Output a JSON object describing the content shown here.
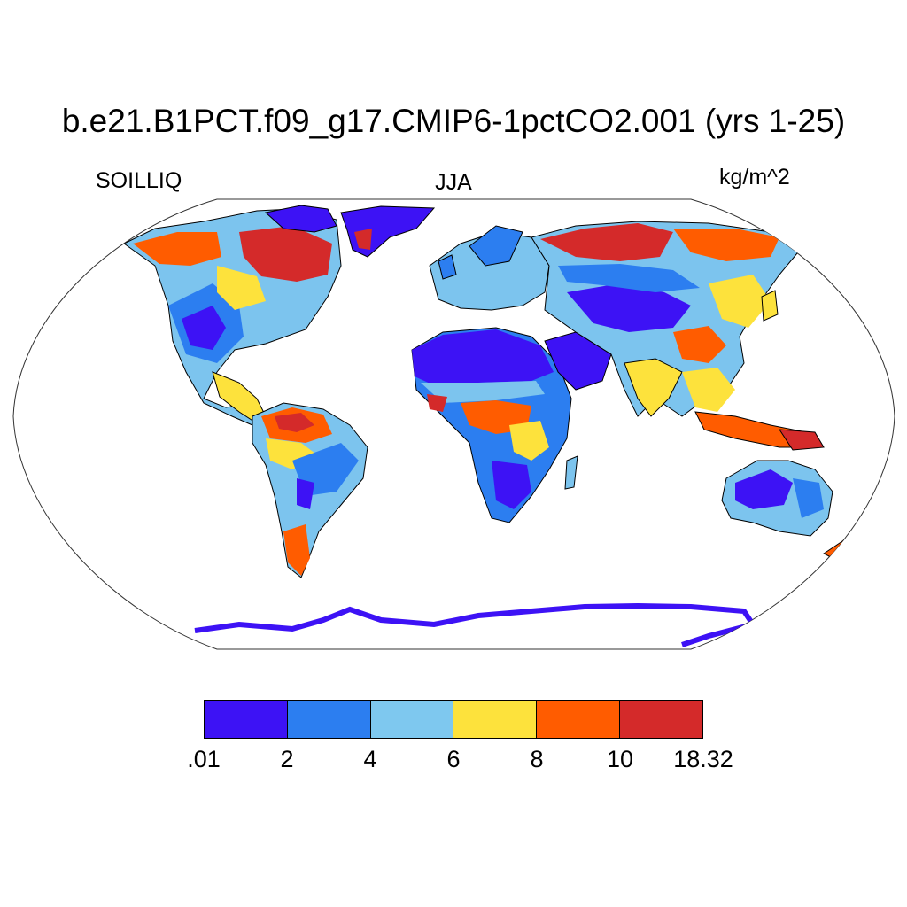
{
  "title": "b.e21.B1PCT.f09_g17.CMIP6-1pctCO2.001 (yrs 1-25)",
  "left_label": "SOILLIQ",
  "center_label": "JJA",
  "right_label": "kg/m^2",
  "colors": {
    "ocean": "#ffffff",
    "coastline": "#000000",
    "land_default": "#7cc4ee"
  },
  "map": {
    "projection": "Robinson",
    "variable": "SOILLIQ",
    "season": "JJA",
    "units": "kg/m^2"
  },
  "colorbar": {
    "bins": [
      {
        "range": ".01-2",
        "color": "#3d12f5"
      },
      {
        "range": "2-4",
        "color": "#2c7ef0"
      },
      {
        "range": "4-6",
        "color": "#7ec8ef"
      },
      {
        "range": "6-8",
        "color": "#fde23c"
      },
      {
        "range": "8-10",
        "color": "#ff5c00"
      },
      {
        "range": "10-18.32",
        "color": "#d42a2a"
      }
    ],
    "labels": [
      ".01",
      "2",
      "4",
      "6",
      "8",
      "10",
      "18.32"
    ]
  }
}
